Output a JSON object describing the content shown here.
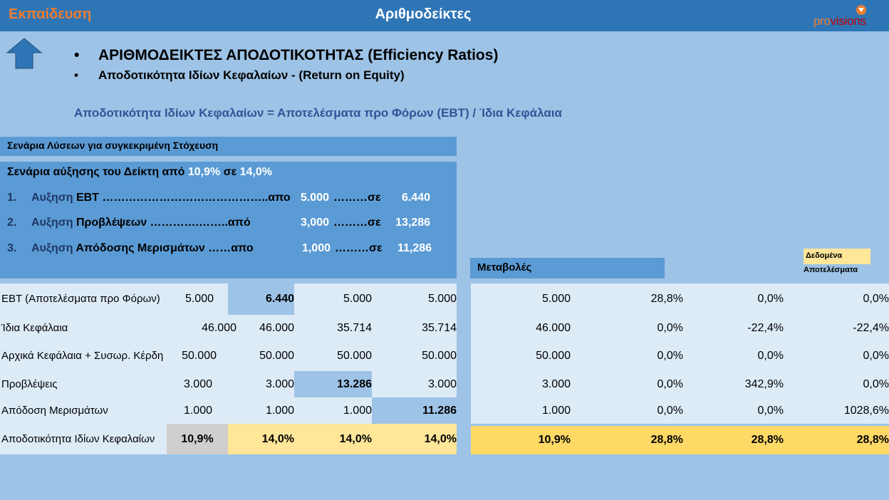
{
  "header": {
    "left_title": "Εκπαίδευση",
    "center_title": "Αριθμοδείκτες",
    "logo_part1": "pro",
    "logo_part2": "visions"
  },
  "icons": {
    "back": "up-arrow-icon",
    "logo_mark": "chevron-down-icon"
  },
  "bullets": [
    {
      "dot": "•",
      "text": "ΑΡΙΘΜΟΔΕΙΚΤΕΣ ΑΠΟΔΟΤΙΚΟΤΗΤΑΣ  (Efficiency Ratios)"
    },
    {
      "dot": "•",
      "text": "Αποδοτικότητα  Ιδίων Κεφαλαίων - (Return on Equity)"
    }
  ],
  "formula": "Αποδοτικότητα  Ιδίων Κεφαλαίων = Αποτελέσματα προ Φόρων (EBT) / Ίδια Κεφάλαια",
  "scenarios": {
    "header": "Σενάρια Λύσεων για συγκεκριμένη Στόχευση",
    "title_prefix": "Σενάρια αύξησης του Δείκτη από ",
    "title_from": "10,9%",
    "title_mid": " σε ",
    "title_to": "14,0%",
    "rows": [
      {
        "num": "1.",
        "label_a": "Αυξηση",
        "label_b": "EBT ……………………………………..απο",
        "from": "5.000",
        "mid": "………σε",
        "to": "6.440"
      },
      {
        "num": "2.",
        "label_a": "Αυξηση",
        "label_b": "Προβλέψεων ………….……..από",
        "from": "3,000",
        "mid": "………σε",
        "to": "13,286"
      },
      {
        "num": "3.",
        "label_a": "Αυξηση",
        "label_b": "Απόδοσης Μερισμάτων ……απο",
        "from": "1,000",
        "mid": "………σε",
        "to": "11,286"
      }
    ]
  },
  "changes_header": "Μεταβολές",
  "legend": {
    "data": "Δεδομένα",
    "results": "Αποτελέσματα"
  },
  "left_table": [
    {
      "label": "EBT (Αποτελέσματα προ Φόρων)",
      "values": [
        "5.000",
        "6.440",
        "5.000",
        "5.000"
      ]
    },
    {
      "label": "Ίδια Κεφάλαια",
      "values": [
        "46.000",
        "46.000",
        "35.714",
        "35.714"
      ]
    },
    {
      "label": "Αρχικά Κεφάλαια + Συσωρ. Κέρδη",
      "values": [
        "50.000",
        "50.000",
        "50.000",
        "50.000"
      ]
    },
    {
      "label": "Προβλέψεις",
      "values": [
        "3.000",
        "3.000",
        "13.286",
        "3.000"
      ]
    },
    {
      "label": "Απόδοση Μερισμάτων",
      "values": [
        "1.000",
        "1.000",
        "1.000",
        "11.286"
      ]
    },
    {
      "label": "Αποδοτικότητα Ιδίων Κεφαλαίων",
      "values": [
        "10,9%",
        "14,0%",
        "14,0%",
        "14,0%"
      ]
    }
  ],
  "right_table": [
    {
      "values": [
        "5.000",
        "28,8%",
        "0,0%",
        "0,0%"
      ]
    },
    {
      "values": [
        "46.000",
        "0,0%",
        "-22,4%",
        "-22,4%"
      ]
    },
    {
      "values": [
        "50.000",
        "0,0%",
        "0,0%",
        "0,0%"
      ]
    },
    {
      "values": [
        "3.000",
        "0,0%",
        "342,9%",
        "0,0%"
      ]
    },
    {
      "values": [
        "1.000",
        "0,0%",
        "0,0%",
        "1028,6%"
      ]
    },
    {
      "values": [
        "10,9%",
        "28,8%",
        "28,8%",
        "28,8%"
      ]
    }
  ]
}
